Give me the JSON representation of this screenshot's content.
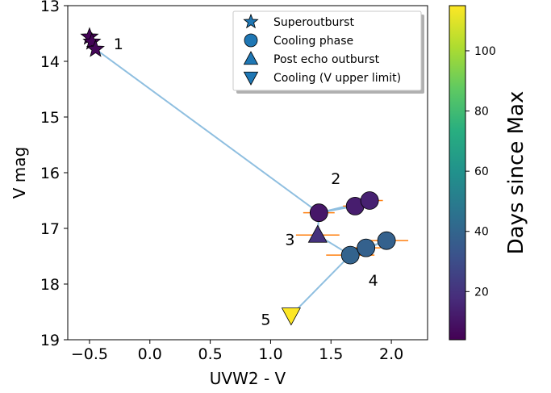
{
  "chart_data": {
    "type": "scatter",
    "xlabel": "UVW2 - V",
    "ylabel": "V mag",
    "xlim": [
      -0.68,
      2.3
    ],
    "ylim": [
      19,
      13
    ],
    "y_inverted": true,
    "x_ticks": [
      -0.5,
      0.0,
      0.5,
      1.0,
      1.5,
      2.0
    ],
    "x_tick_labels": [
      "−0.5",
      "0.0",
      "0.5",
      "1.0",
      "1.5",
      "2.0"
    ],
    "y_ticks": [
      13,
      14,
      15,
      16,
      17,
      18,
      19
    ],
    "y_tick_labels": [
      "13",
      "14",
      "15",
      "16",
      "17",
      "18",
      "19"
    ],
    "grid": false,
    "legend_position": "top-right",
    "legend": [
      {
        "marker": "star",
        "label": "Superoutburst"
      },
      {
        "marker": "circle",
        "label": "Cooling phase"
      },
      {
        "marker": "triangle-up",
        "label": "Post echo outburst"
      },
      {
        "marker": "triangle-down",
        "label": "Cooling (V upper limit)"
      }
    ],
    "legend_marker_color": "#1f77b4",
    "line_color": "#8fbfe0",
    "errorbar_color": "#ff7f0e",
    "colorbar": {
      "label": "Days since Max",
      "min": 4,
      "max": 115,
      "ticks": [
        20,
        40,
        60,
        80,
        100
      ],
      "tick_labels": [
        "20",
        "40",
        "60",
        "80",
        "100"
      ],
      "colormap": "viridis"
    },
    "series": [
      {
        "marker": "star",
        "points": [
          {
            "x": -0.5,
            "y": 13.56,
            "days": 5
          },
          {
            "x": -0.48,
            "y": 13.65,
            "days": 5
          },
          {
            "x": -0.45,
            "y": 13.78,
            "days": 6
          }
        ]
      },
      {
        "marker": "circle",
        "points": [
          {
            "x": 1.4,
            "y": 16.72,
            "days": 11,
            "xerr": 0.13
          },
          {
            "x": 1.7,
            "y": 16.6,
            "days": 13,
            "xerr": 0.1
          },
          {
            "x": 1.82,
            "y": 16.5,
            "days": 14,
            "xerr": 0.11
          },
          {
            "x": 1.66,
            "y": 17.48,
            "days": 39,
            "xerr": 0.2,
            "yerr": 0.12
          },
          {
            "x": 1.79,
            "y": 17.35,
            "days": 38,
            "xerr": 0.12
          },
          {
            "x": 1.96,
            "y": 17.22,
            "days": 38,
            "xerr": 0.18
          }
        ]
      },
      {
        "marker": "triangle-up",
        "points": [
          {
            "x": 1.39,
            "y": 17.12,
            "days": 20,
            "xerr": 0.18
          }
        ]
      },
      {
        "marker": "triangle-down",
        "points": [
          {
            "x": 1.17,
            "y": 18.56,
            "days": 115
          }
        ]
      }
    ],
    "connecting_line": [
      {
        "x": -0.45,
        "y": 13.78
      },
      {
        "x": 1.4,
        "y": 16.72
      },
      {
        "x": 1.7,
        "y": 16.6
      },
      {
        "x": 1.82,
        "y": 16.5
      },
      {
        "x": 1.4,
        "y": 16.72
      },
      {
        "x": 1.39,
        "y": 17.12
      },
      {
        "x": 1.66,
        "y": 17.48
      },
      {
        "x": 1.79,
        "y": 17.35
      },
      {
        "x": 1.96,
        "y": 17.22
      },
      {
        "x": 1.66,
        "y": 17.48
      },
      {
        "x": 1.17,
        "y": 18.56
      }
    ],
    "annotations": [
      {
        "text": "1",
        "x": -0.26,
        "y": 13.7
      },
      {
        "text": "2",
        "x": 1.54,
        "y": 16.12
      },
      {
        "text": "3",
        "x": 1.16,
        "y": 17.22
      },
      {
        "text": "4",
        "x": 1.85,
        "y": 17.95
      },
      {
        "text": "5",
        "x": 0.96,
        "y": 18.65
      }
    ]
  }
}
